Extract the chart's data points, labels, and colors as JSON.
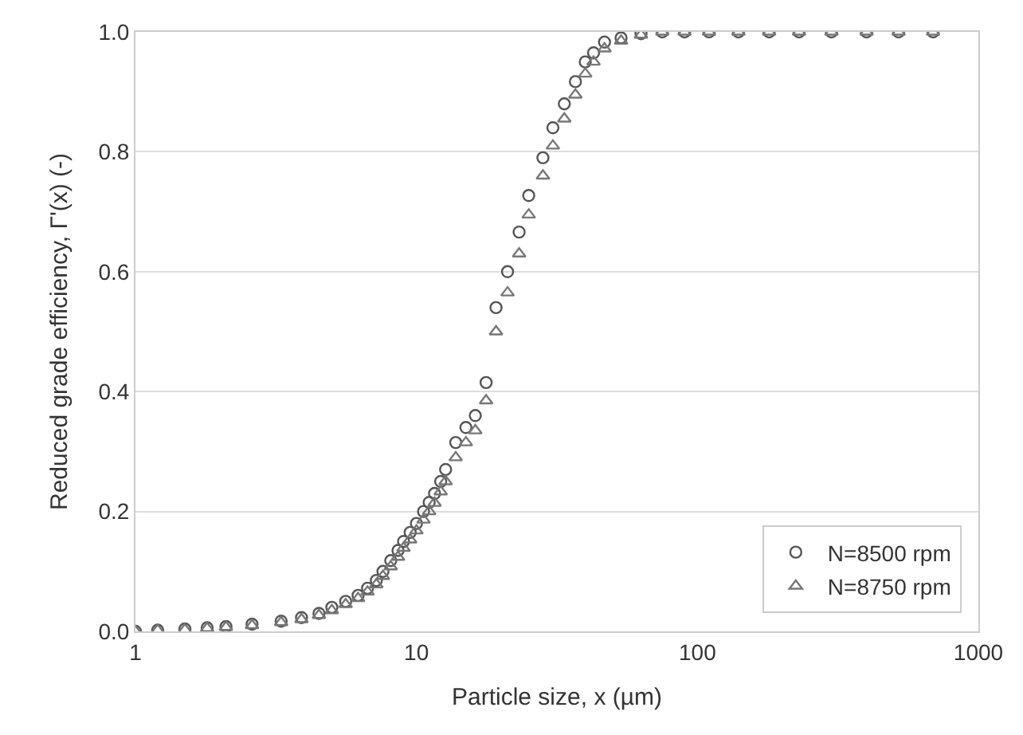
{
  "chart_data": {
    "type": "scatter",
    "xlabel": "Particle size, x (µm)",
    "ylabel": "Reduced grade efficiency, Γ'(x) (-)",
    "log": "x",
    "xlim": [
      1,
      1000
    ],
    "xticks": [
      1,
      10,
      100,
      1000
    ],
    "ylim": [
      0,
      1
    ],
    "yticks": [
      {
        "value": 0,
        "label": "0.0"
      },
      {
        "value": 0.2,
        "label": "0.2"
      },
      {
        "value": 0.4,
        "label": "0.4"
      },
      {
        "value": 0.6,
        "label": "0.6"
      },
      {
        "value": 0.8,
        "label": "0.8"
      },
      {
        "value": 1,
        "label": "1.0"
      }
    ],
    "grid": "y",
    "legend": "bottom right",
    "x": [
      1.0,
      1.2,
      1.5,
      1.8,
      2.1,
      2.6,
      3.3,
      3.9,
      4.5,
      5.0,
      5.6,
      6.2,
      6.7,
      7.2,
      7.6,
      8.1,
      8.6,
      9.0,
      9.5,
      10.0,
      10.6,
      11.1,
      11.6,
      12.2,
      12.7,
      13.8,
      15.0,
      16.2,
      17.7,
      19.2,
      21.1,
      23.2,
      25.1,
      28.2,
      30.6,
      33.6,
      36.8,
      39.9,
      42.7,
      46.7,
      53.5,
      63,
      75,
      90,
      110,
      140,
      180,
      230,
      300,
      400,
      520,
      690
    ],
    "series": [
      {
        "name": "N=8500 rpm",
        "color": "#555555",
        "marker": "circle",
        "values": [
          0.0,
          0.002,
          0.004,
          0.006,
          0.008,
          0.012,
          0.017,
          0.023,
          0.03,
          0.04,
          0.05,
          0.06,
          0.072,
          0.085,
          0.1,
          0.118,
          0.135,
          0.15,
          0.165,
          0.18,
          0.2,
          0.215,
          0.23,
          0.25,
          0.27,
          0.315,
          0.34,
          0.36,
          0.415,
          0.54,
          0.6,
          0.666,
          0.727,
          0.79,
          0.84,
          0.88,
          0.917,
          0.95,
          0.965,
          0.983,
          0.99,
          0.997,
          1.0,
          1.0,
          1.0,
          1.0,
          1.0,
          1.0,
          1.0,
          1.0,
          1.0,
          1.0
        ]
      },
      {
        "name": "N=8750 rpm",
        "color": "#777777",
        "marker": "triangle",
        "values": [
          0.0,
          0.002,
          0.003,
          0.005,
          0.007,
          0.01,
          0.015,
          0.02,
          0.027,
          0.035,
          0.045,
          0.055,
          0.066,
          0.078,
          0.092,
          0.108,
          0.124,
          0.139,
          0.153,
          0.168,
          0.186,
          0.2,
          0.214,
          0.233,
          0.25,
          0.29,
          0.315,
          0.335,
          0.385,
          0.5,
          0.565,
          0.63,
          0.695,
          0.76,
          0.81,
          0.855,
          0.895,
          0.93,
          0.95,
          0.972,
          0.985,
          0.995,
          1.0,
          1.0,
          1.0,
          1.0,
          1.0,
          1.0,
          1.0,
          1.0,
          1.0,
          1.0
        ]
      }
    ]
  }
}
